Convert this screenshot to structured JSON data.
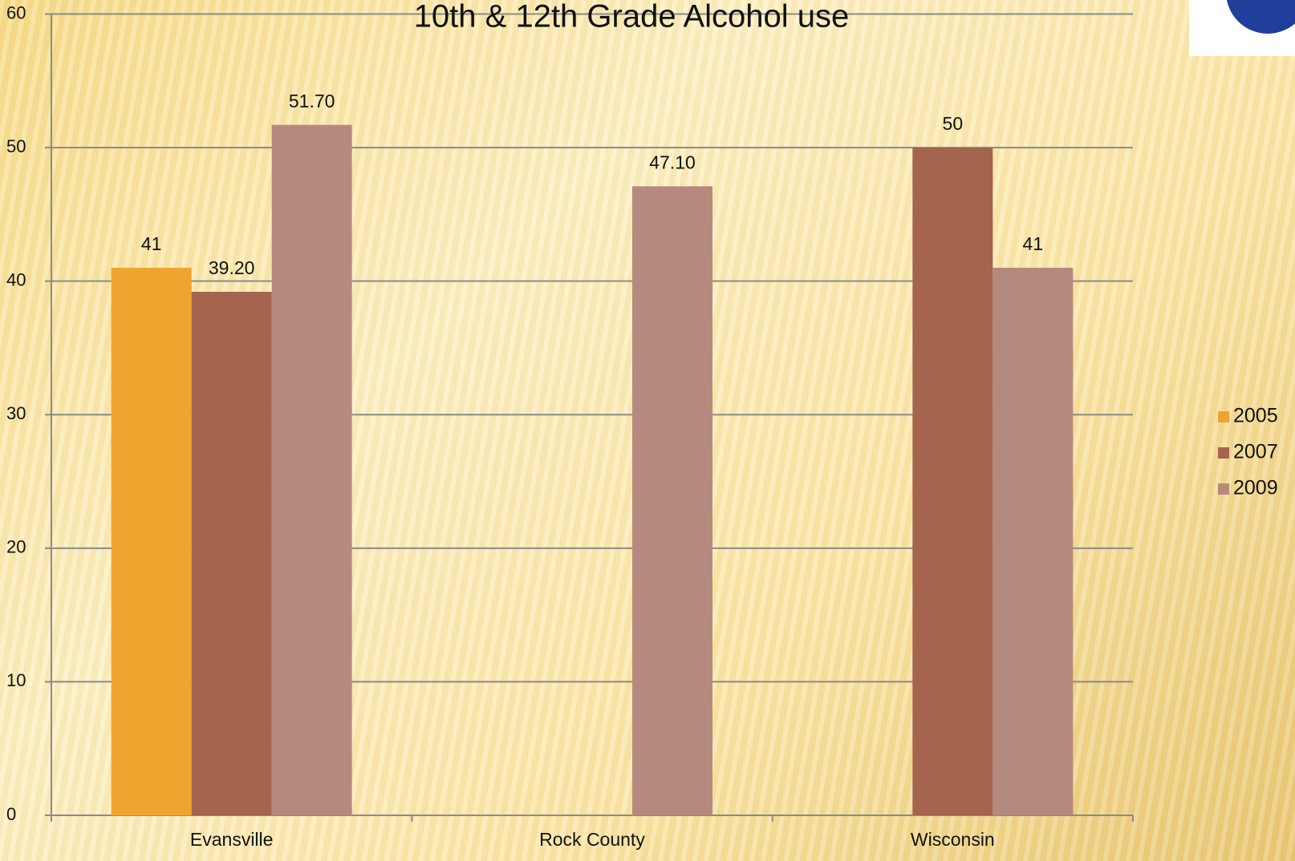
{
  "chart_data": {
    "type": "bar",
    "title": "10th & 12th Grade Alcohol use",
    "categories": [
      "Evansville",
      "Rock County",
      "Wisconsin"
    ],
    "series": [
      {
        "name": "2005",
        "color": "#f0a430",
        "values": [
          41,
          null,
          null
        ],
        "value_labels": [
          "41",
          null,
          null
        ]
      },
      {
        "name": "2007",
        "color": "#a4644e",
        "values": [
          39.2,
          null,
          50
        ],
        "value_labels": [
          "39.20",
          null,
          "50"
        ]
      },
      {
        "name": "2009",
        "color": "#b58a7e",
        "values": [
          51.7,
          47.1,
          41
        ],
        "value_labels": [
          "51.70",
          "47.10",
          "41"
        ]
      }
    ],
    "ylim": [
      0,
      60
    ],
    "yticks": [
      0,
      10,
      20,
      30,
      40,
      50,
      60
    ],
    "grid": true,
    "legend": "right"
  }
}
